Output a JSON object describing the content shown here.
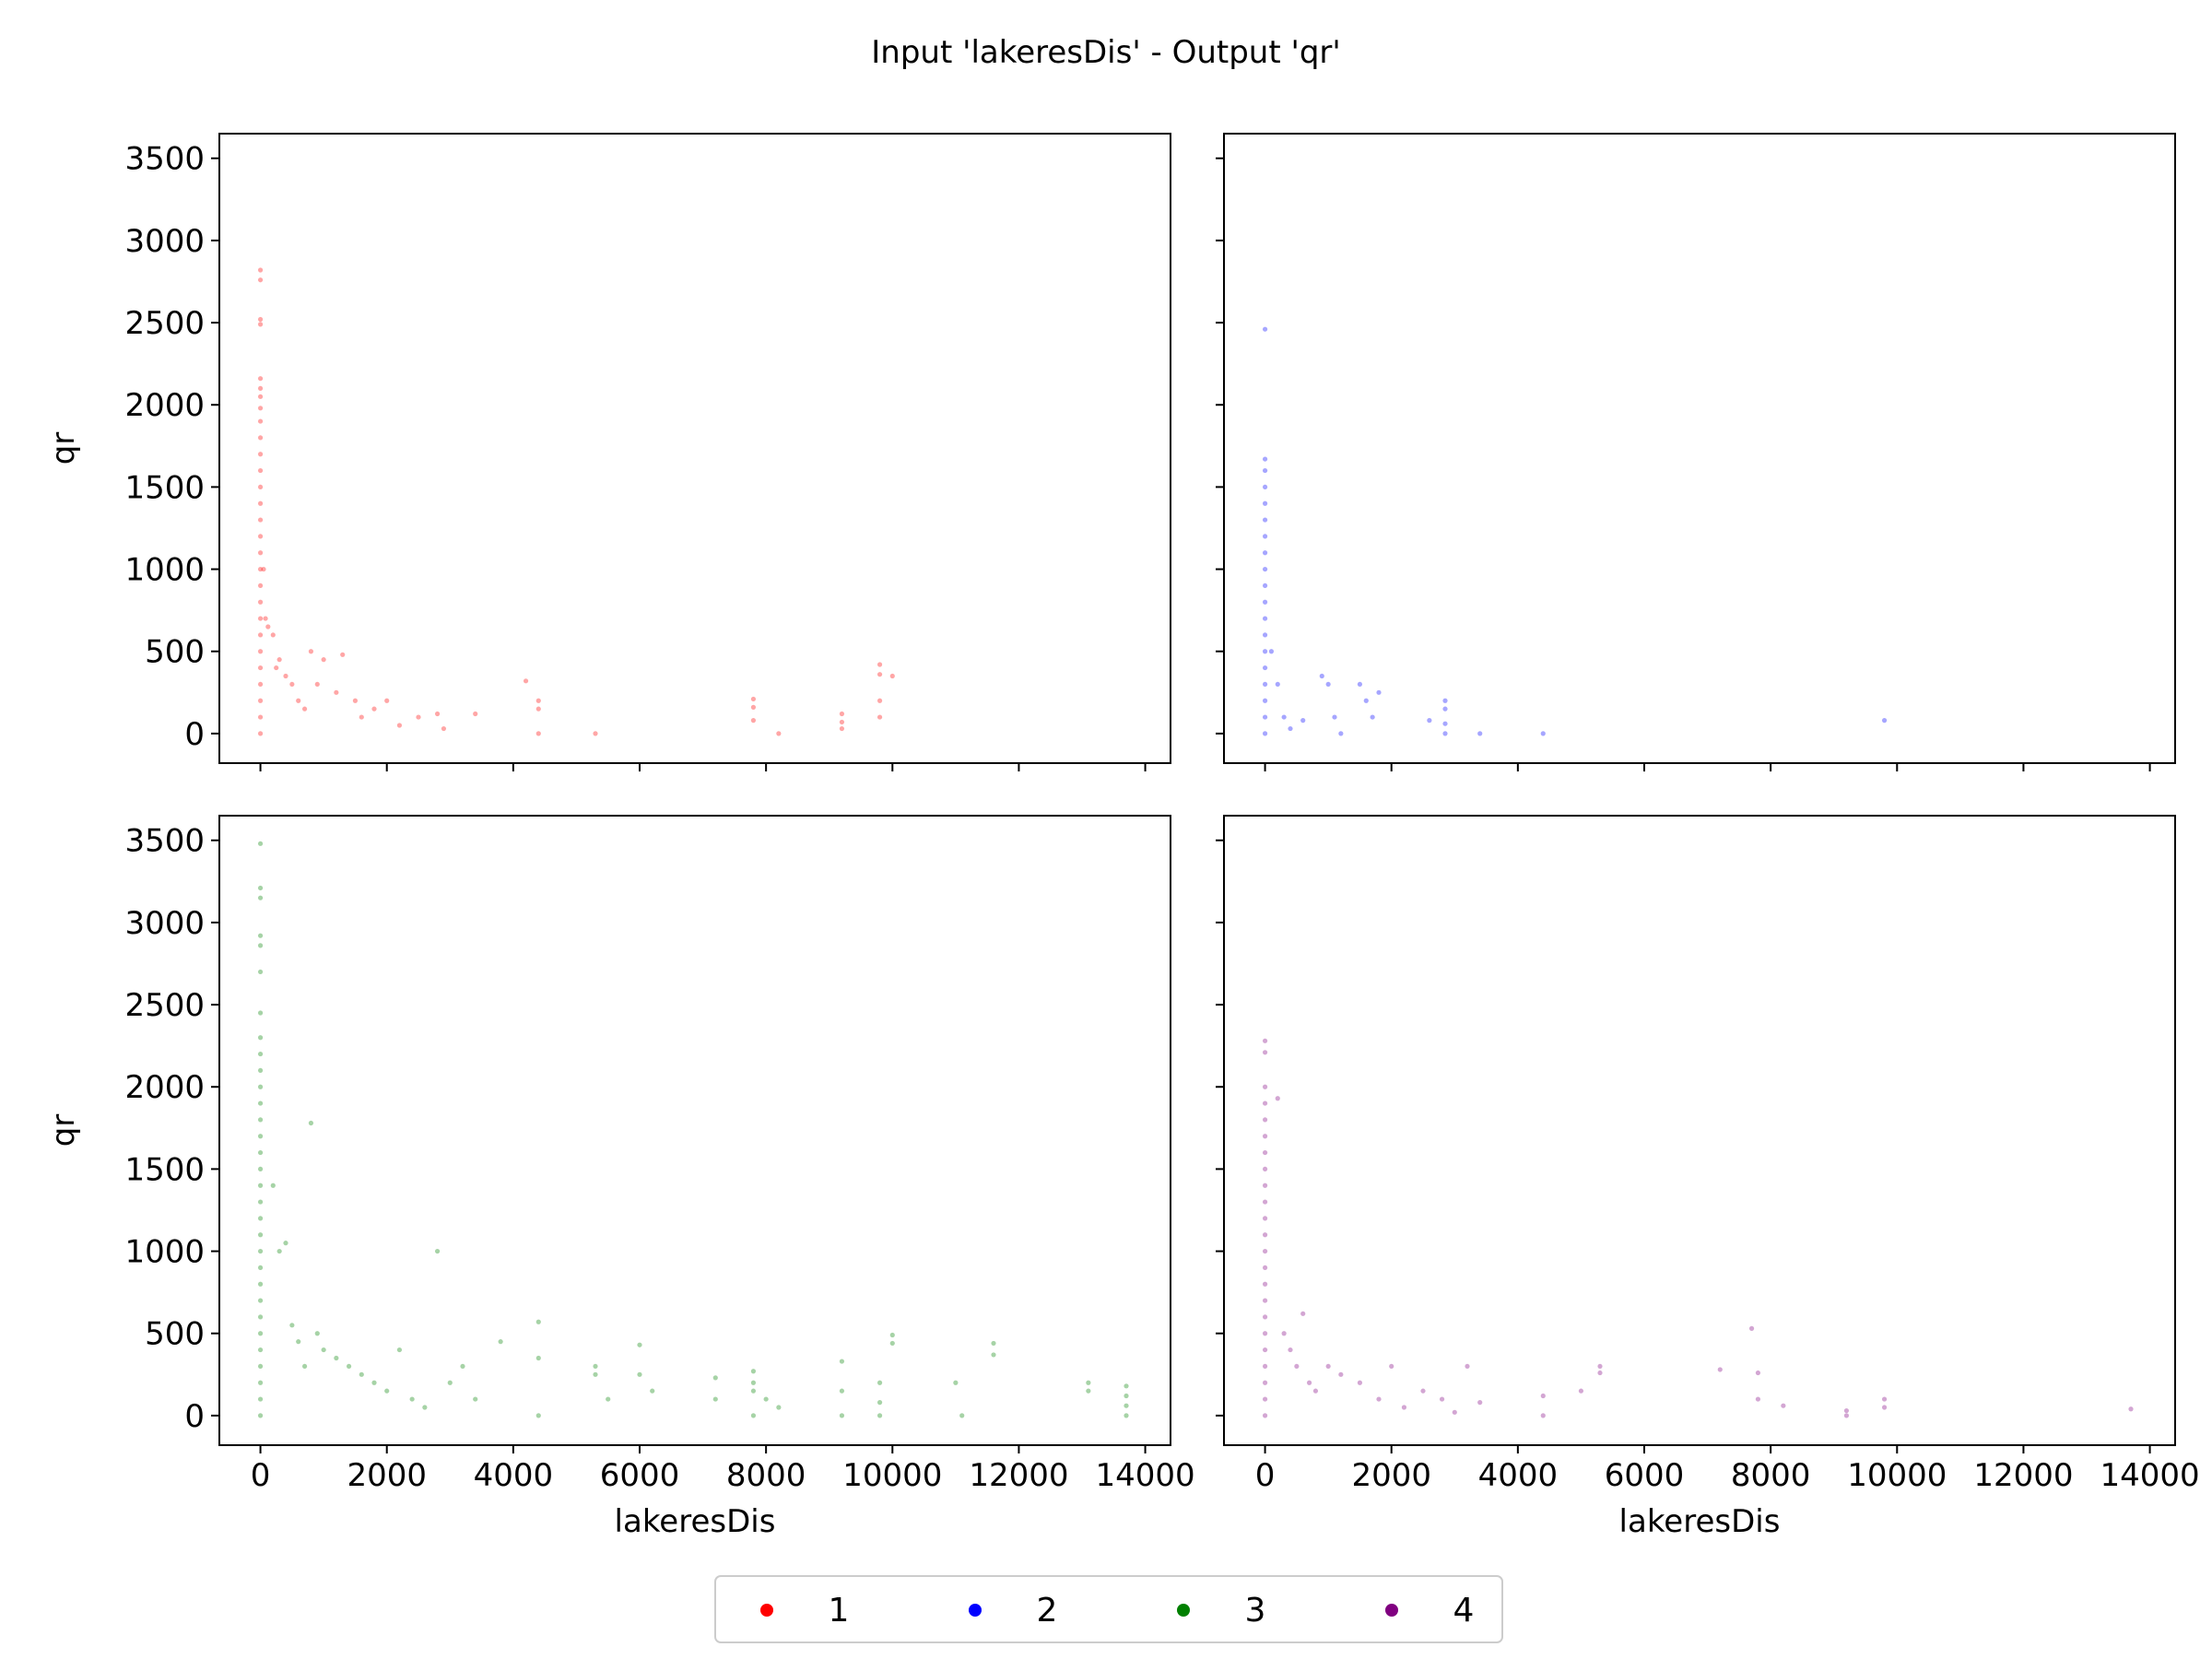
{
  "title": "Input 'lakeresDis' - Output 'qr'",
  "legend": {
    "placement": "bottom-center",
    "entries": [
      {
        "label": "1",
        "color": "#ff0000"
      },
      {
        "label": "2",
        "color": "#0000ff"
      },
      {
        "label": "3",
        "color": "#008000"
      },
      {
        "label": "4",
        "color": "#800080"
      }
    ]
  },
  "chart_data": [
    {
      "type": "scatter",
      "panel": "top-left",
      "series": "1",
      "color": "#ff0000",
      "xlabel": "",
      "ylabel": "qr",
      "xlim": [
        -650,
        14400
      ],
      "ylim": [
        -180,
        3650
      ],
      "xticks": [
        0,
        2000,
        4000,
        6000,
        8000,
        10000,
        12000,
        14000
      ],
      "yticks": [
        0,
        500,
        1000,
        1500,
        2000,
        2500,
        3000,
        3500
      ],
      "show_xticklabels": false,
      "show_yticklabels": true,
      "grid": false,
      "points": [
        [
          0,
          2820
        ],
        [
          0,
          2760
        ],
        [
          0,
          2520
        ],
        [
          0,
          2490
        ],
        [
          0,
          2160
        ],
        [
          0,
          2100
        ],
        [
          0,
          2050
        ],
        [
          0,
          1980
        ],
        [
          0,
          1900
        ],
        [
          0,
          1800
        ],
        [
          0,
          1700
        ],
        [
          0,
          1600
        ],
        [
          0,
          1500
        ],
        [
          0,
          1400
        ],
        [
          0,
          1300
        ],
        [
          0,
          1200
        ],
        [
          0,
          1100
        ],
        [
          0,
          1000
        ],
        [
          0,
          900
        ],
        [
          0,
          800
        ],
        [
          0,
          700
        ],
        [
          0,
          600
        ],
        [
          0,
          500
        ],
        [
          0,
          400
        ],
        [
          0,
          300
        ],
        [
          0,
          200
        ],
        [
          0,
          100
        ],
        [
          0,
          0
        ],
        [
          50,
          1000
        ],
        [
          80,
          700
        ],
        [
          120,
          650
        ],
        [
          200,
          600
        ],
        [
          250,
          400
        ],
        [
          300,
          450
        ],
        [
          400,
          350
        ],
        [
          500,
          300
        ],
        [
          600,
          200
        ],
        [
          700,
          150
        ],
        [
          800,
          500
        ],
        [
          900,
          300
        ],
        [
          1000,
          450
        ],
        [
          1200,
          250
        ],
        [
          1300,
          480
        ],
        [
          1500,
          200
        ],
        [
          1600,
          100
        ],
        [
          1800,
          150
        ],
        [
          2000,
          200
        ],
        [
          2200,
          50
        ],
        [
          2500,
          100
        ],
        [
          2800,
          120
        ],
        [
          2900,
          30
        ],
        [
          3400,
          120
        ],
        [
          4200,
          320
        ],
        [
          4400,
          200
        ],
        [
          4400,
          150
        ],
        [
          4400,
          0
        ],
        [
          5300,
          0
        ],
        [
          7800,
          210
        ],
        [
          7800,
          160
        ],
        [
          7800,
          80
        ],
        [
          8200,
          0
        ],
        [
          9200,
          120
        ],
        [
          9200,
          70
        ],
        [
          9200,
          30
        ],
        [
          9800,
          420
        ],
        [
          9800,
          360
        ],
        [
          9800,
          200
        ],
        [
          9800,
          100
        ],
        [
          10000,
          350
        ]
      ]
    },
    {
      "type": "scatter",
      "panel": "top-right",
      "series": "2",
      "color": "#0000ff",
      "xlabel": "",
      "ylabel": "",
      "xlim": [
        -650,
        14400
      ],
      "ylim": [
        -180,
        3650
      ],
      "xticks": [
        0,
        2000,
        4000,
        6000,
        8000,
        10000,
        12000,
        14000
      ],
      "yticks": [
        0,
        500,
        1000,
        1500,
        2000,
        2500,
        3000,
        3500
      ],
      "show_xticklabels": false,
      "show_yticklabels": false,
      "grid": false,
      "points": [
        [
          0,
          2460
        ],
        [
          0,
          1670
        ],
        [
          0,
          1600
        ],
        [
          0,
          1500
        ],
        [
          0,
          1400
        ],
        [
          0,
          1300
        ],
        [
          0,
          1200
        ],
        [
          0,
          1100
        ],
        [
          0,
          1000
        ],
        [
          0,
          900
        ],
        [
          0,
          800
        ],
        [
          0,
          700
        ],
        [
          0,
          600
        ],
        [
          0,
          500
        ],
        [
          0,
          400
        ],
        [
          0,
          300
        ],
        [
          0,
          200
        ],
        [
          0,
          100
        ],
        [
          0,
          0
        ],
        [
          100,
          500
        ],
        [
          200,
          300
        ],
        [
          300,
          100
        ],
        [
          400,
          30
        ],
        [
          600,
          80
        ],
        [
          900,
          350
        ],
        [
          1000,
          300
        ],
        [
          1100,
          100
        ],
        [
          1200,
          0
        ],
        [
          1500,
          300
        ],
        [
          1600,
          200
        ],
        [
          1700,
          100
        ],
        [
          1800,
          250
        ],
        [
          2600,
          80
        ],
        [
          2850,
          200
        ],
        [
          2850,
          150
        ],
        [
          2850,
          60
        ],
        [
          2850,
          0
        ],
        [
          3400,
          0
        ],
        [
          4400,
          0
        ],
        [
          9800,
          80
        ]
      ]
    },
    {
      "type": "scatter",
      "panel": "bottom-left",
      "series": "3",
      "color": "#008000",
      "xlabel": "lakeresDis",
      "ylabel": "qr",
      "xlim": [
        -650,
        14400
      ],
      "ylim": [
        -180,
        3650
      ],
      "xticks": [
        0,
        2000,
        4000,
        6000,
        8000,
        10000,
        12000,
        14000
      ],
      "yticks": [
        0,
        500,
        1000,
        1500,
        2000,
        2500,
        3000,
        3500
      ],
      "show_xticklabels": true,
      "show_yticklabels": true,
      "grid": false,
      "points": [
        [
          0,
          3480
        ],
        [
          0,
          3210
        ],
        [
          0,
          3150
        ],
        [
          0,
          2920
        ],
        [
          0,
          2860
        ],
        [
          0,
          2700
        ],
        [
          0,
          2450
        ],
        [
          0,
          2300
        ],
        [
          0,
          2200
        ],
        [
          0,
          2100
        ],
        [
          0,
          2000
        ],
        [
          0,
          1900
        ],
        [
          0,
          1800
        ],
        [
          0,
          1700
        ],
        [
          0,
          1600
        ],
        [
          0,
          1500
        ],
        [
          0,
          1400
        ],
        [
          0,
          1300
        ],
        [
          0,
          1200
        ],
        [
          0,
          1100
        ],
        [
          0,
          1000
        ],
        [
          0,
          900
        ],
        [
          0,
          800
        ],
        [
          0,
          700
        ],
        [
          0,
          600
        ],
        [
          0,
          500
        ],
        [
          0,
          400
        ],
        [
          0,
          300
        ],
        [
          0,
          200
        ],
        [
          0,
          100
        ],
        [
          0,
          0
        ],
        [
          200,
          1400
        ],
        [
          300,
          1000
        ],
        [
          400,
          1050
        ],
        [
          800,
          1780
        ],
        [
          500,
          550
        ],
        [
          600,
          450
        ],
        [
          700,
          300
        ],
        [
          900,
          500
        ],
        [
          1000,
          400
        ],
        [
          1200,
          350
        ],
        [
          1400,
          300
        ],
        [
          1600,
          250
        ],
        [
          1800,
          200
        ],
        [
          2000,
          150
        ],
        [
          2200,
          400
        ],
        [
          2400,
          100
        ],
        [
          2600,
          50
        ],
        [
          2800,
          1000
        ],
        [
          3000,
          200
        ],
        [
          3200,
          300
        ],
        [
          3400,
          100
        ],
        [
          3800,
          450
        ],
        [
          4400,
          570
        ],
        [
          4400,
          350
        ],
        [
          4400,
          0
        ],
        [
          5300,
          300
        ],
        [
          5300,
          250
        ],
        [
          5500,
          100
        ],
        [
          6000,
          430
        ],
        [
          6000,
          250
        ],
        [
          6200,
          150
        ],
        [
          7200,
          230
        ],
        [
          7200,
          100
        ],
        [
          7800,
          270
        ],
        [
          7800,
          200
        ],
        [
          7800,
          150
        ],
        [
          7800,
          0
        ],
        [
          8000,
          100
        ],
        [
          8200,
          50
        ],
        [
          9200,
          330
        ],
        [
          9200,
          150
        ],
        [
          9200,
          0
        ],
        [
          9800,
          200
        ],
        [
          9800,
          80
        ],
        [
          9800,
          0
        ],
        [
          10000,
          490
        ],
        [
          10000,
          440
        ],
        [
          11000,
          200
        ],
        [
          11100,
          0
        ],
        [
          11600,
          440
        ],
        [
          11600,
          370
        ],
        [
          13100,
          200
        ],
        [
          13100,
          150
        ],
        [
          13700,
          180
        ],
        [
          13700,
          120
        ],
        [
          13700,
          60
        ],
        [
          13700,
          0
        ]
      ]
    },
    {
      "type": "scatter",
      "panel": "bottom-right",
      "series": "4",
      "color": "#800080",
      "xlabel": "lakeresDis",
      "ylabel": "",
      "xlim": [
        -650,
        14400
      ],
      "ylim": [
        -180,
        3650
      ],
      "xticks": [
        0,
        2000,
        4000,
        6000,
        8000,
        10000,
        12000,
        14000
      ],
      "yticks": [
        0,
        500,
        1000,
        1500,
        2000,
        2500,
        3000,
        3500
      ],
      "show_xticklabels": true,
      "show_yticklabels": false,
      "grid": false,
      "points": [
        [
          0,
          2280
        ],
        [
          0,
          2210
        ],
        [
          0,
          2000
        ],
        [
          0,
          1900
        ],
        [
          0,
          1800
        ],
        [
          0,
          1700
        ],
        [
          0,
          1600
        ],
        [
          0,
          1500
        ],
        [
          0,
          1400
        ],
        [
          0,
          1300
        ],
        [
          0,
          1200
        ],
        [
          0,
          1100
        ],
        [
          0,
          1000
        ],
        [
          0,
          900
        ],
        [
          0,
          800
        ],
        [
          0,
          700
        ],
        [
          0,
          600
        ],
        [
          0,
          500
        ],
        [
          0,
          400
        ],
        [
          0,
          300
        ],
        [
          0,
          200
        ],
        [
          0,
          100
        ],
        [
          0,
          0
        ],
        [
          200,
          1930
        ],
        [
          300,
          500
        ],
        [
          400,
          400
        ],
        [
          500,
          300
        ],
        [
          600,
          620
        ],
        [
          700,
          200
        ],
        [
          800,
          150
        ],
        [
          1000,
          300
        ],
        [
          1200,
          250
        ],
        [
          1500,
          200
        ],
        [
          1800,
          100
        ],
        [
          2000,
          300
        ],
        [
          2200,
          50
        ],
        [
          2500,
          150
        ],
        [
          2800,
          100
        ],
        [
          3000,
          20
        ],
        [
          3200,
          300
        ],
        [
          3400,
          80
        ],
        [
          4400,
          120
        ],
        [
          4400,
          0
        ],
        [
          5000,
          150
        ],
        [
          5300,
          300
        ],
        [
          5300,
          260
        ],
        [
          7200,
          280
        ],
        [
          7700,
          530
        ],
        [
          7800,
          260
        ],
        [
          7800,
          100
        ],
        [
          8200,
          60
        ],
        [
          9200,
          30
        ],
        [
          9200,
          0
        ],
        [
          9800,
          100
        ],
        [
          9800,
          50
        ],
        [
          13700,
          40
        ]
      ]
    }
  ]
}
